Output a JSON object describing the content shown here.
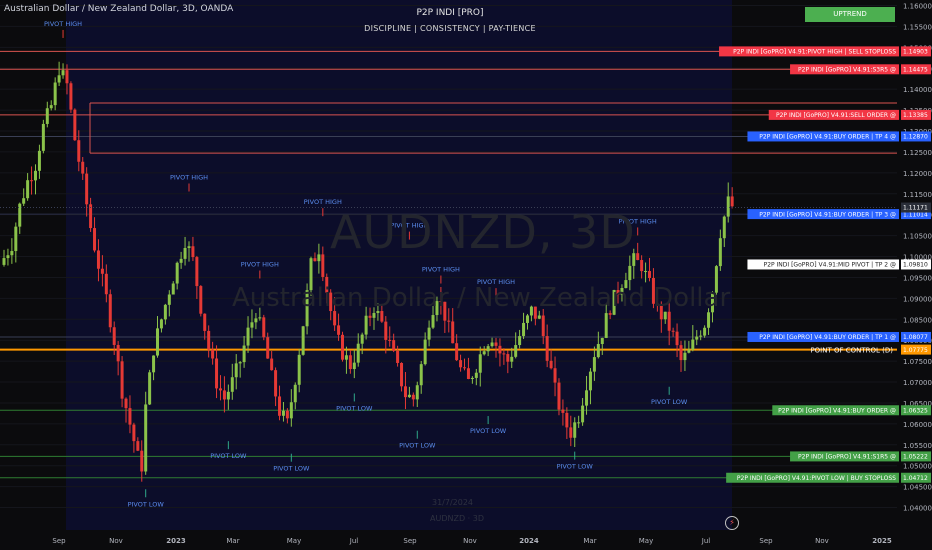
{
  "header": {
    "symbol_title": "Australian Dollar / New Zealand Dollar, 3D, OANDA",
    "indicator_title": "P2P INDI [PRO]",
    "tagline": "DISCIPLINE | CONSISTENCY | PAY-TIENCE",
    "trend_badge": "UPTREND"
  },
  "watermark": {
    "ticker": "AUDNZD, 3D",
    "name": "Australian Dollar / New Zealand Dollar",
    "date": "31/7/2024",
    "symbol": "AUDNZD · 3D"
  },
  "icons": {
    "alert": "lightning-icon"
  },
  "colors": {
    "bull": "#8bc34a",
    "bear": "#e53935",
    "sell_line": "#d9534f",
    "buy_line": "#2e7d32",
    "poc": "#ff9800",
    "range_bg": "#0c0d2a",
    "buy_tag": "#2962ff",
    "sell_tag": "#f23645",
    "green_tag": "#43a047"
  },
  "chart_data": {
    "type": "candlestick",
    "symbol": "AUDNZD",
    "timeframe": "3D",
    "ylim": [
      1.0375,
      1.16
    ],
    "x_ticks": [
      "Sep",
      "Nov",
      "2023",
      "Mar",
      "May",
      "Jul",
      "Sep",
      "Nov",
      "2024",
      "Mar",
      "May",
      "Jul",
      "Sep",
      "Nov",
      "2025"
    ],
    "y_ticks": [
      "1.16000",
      "1.15500",
      "1.15000",
      "1.14500",
      "1.14000",
      "1.13500",
      "1.13000",
      "1.12500",
      "1.12000",
      "1.11500",
      "1.11000",
      "1.10500",
      "1.10000",
      "1.09500",
      "1.09000",
      "1.08500",
      "1.08000",
      "1.07500",
      "1.07000",
      "1.06500",
      "1.06000",
      "1.05500",
      "1.05000",
      "1.04500",
      "1.04000"
    ],
    "current_price": "1.11171",
    "price_path": [
      [
        0,
        1.098
      ],
      [
        6,
        1.103
      ],
      [
        10,
        1.112
      ],
      [
        14,
        1.118
      ],
      [
        18,
        1.122
      ],
      [
        22,
        1.131
      ],
      [
        26,
        1.136
      ],
      [
        30,
        1.145
      ],
      [
        34,
        1.141
      ],
      [
        38,
        1.128
      ],
      [
        42,
        1.118
      ],
      [
        46,
        1.107
      ],
      [
        50,
        1.098
      ],
      [
        54,
        1.09
      ],
      [
        58,
        1.08
      ],
      [
        62,
        1.068
      ],
      [
        66,
        1.06
      ],
      [
        70,
        1.052
      ],
      [
        72,
        1.05
      ],
      [
        74,
        1.064
      ],
      [
        78,
        1.078
      ],
      [
        82,
        1.085
      ],
      [
        86,
        1.092
      ],
      [
        90,
        1.098
      ],
      [
        94,
        1.104
      ],
      [
        98,
        1.099
      ],
      [
        102,
        1.088
      ],
      [
        106,
        1.078
      ],
      [
        110,
        1.07
      ],
      [
        114,
        1.066
      ],
      [
        118,
        1.07
      ],
      [
        122,
        1.075
      ],
      [
        126,
        1.082
      ],
      [
        130,
        1.087
      ],
      [
        134,
        1.08
      ],
      [
        138,
        1.071
      ],
      [
        142,
        1.063
      ],
      [
        146,
        1.06
      ],
      [
        150,
        1.071
      ],
      [
        154,
        1.084
      ],
      [
        158,
        1.098
      ],
      [
        162,
        1.102
      ],
      [
        166,
        1.092
      ],
      [
        170,
        1.082
      ],
      [
        174,
        1.077
      ],
      [
        178,
        1.074
      ],
      [
        182,
        1.078
      ],
      [
        186,
        1.084
      ],
      [
        190,
        1.088
      ],
      [
        194,
        1.084
      ],
      [
        198,
        1.079
      ],
      [
        202,
        1.073
      ],
      [
        206,
        1.067
      ],
      [
        210,
        1.066
      ],
      [
        214,
        1.074
      ],
      [
        218,
        1.085
      ],
      [
        222,
        1.091
      ],
      [
        226,
        1.086
      ],
      [
        230,
        1.079
      ],
      [
        234,
        1.073
      ],
      [
        238,
        1.07
      ],
      [
        242,
        1.074
      ],
      [
        246,
        1.079
      ],
      [
        250,
        1.081
      ],
      [
        254,
        1.077
      ],
      [
        258,
        1.075
      ],
      [
        262,
        1.079
      ],
      [
        266,
        1.083
      ],
      [
        270,
        1.087
      ],
      [
        274,
        1.085
      ],
      [
        278,
        1.077
      ],
      [
        282,
        1.068
      ],
      [
        286,
        1.061
      ],
      [
        290,
        1.058
      ],
      [
        294,
        1.062
      ],
      [
        298,
        1.07
      ],
      [
        302,
        1.077
      ],
      [
        306,
        1.082
      ],
      [
        310,
        1.088
      ],
      [
        314,
        1.092
      ],
      [
        318,
        1.096
      ],
      [
        322,
        1.099
      ],
      [
        326,
        1.098
      ],
      [
        330,
        1.093
      ],
      [
        334,
        1.087
      ],
      [
        338,
        1.085
      ],
      [
        342,
        1.081
      ],
      [
        346,
        1.075
      ],
      [
        350,
        1.077
      ],
      [
        354,
        1.081
      ],
      [
        358,
        1.084
      ],
      [
        362,
        1.092
      ],
      [
        366,
        1.106
      ],
      [
        370,
        1.113
      ],
      [
        372,
        1.112
      ]
    ],
    "levels": [
      {
        "label": "P2P INDI [GoPRO] V4.91:PIVOT HIGH | SELL STOPLOSS",
        "price": 1.14903,
        "kind": "sell"
      },
      {
        "label": "P2P INDI [GoPRO] V4.91:S3R5 @",
        "price": 1.14475,
        "kind": "sell"
      },
      {
        "label": "",
        "price": 1.1367,
        "kind": "sell"
      },
      {
        "label": "P2P INDI [GoPRO] V4.91:SELL ORDER @",
        "price": 1.13385,
        "kind": "sell"
      },
      {
        "label": "P2P INDI [GoPRO] V4.91:BUY ORDER | TP 4 @",
        "price": 1.1287,
        "kind": "buy"
      },
      {
        "label": "",
        "price": 1.1247,
        "kind": "sell"
      },
      {
        "label": "P2P INDI [GoPRO] V4.91:BUY ORDER | TP 3 @",
        "price": 1.11014,
        "kind": "buy"
      },
      {
        "label": "P2P INDI [GoPRO] V4.91:MID PIVOT | TP 2 @",
        "price": 1.0981,
        "kind": "mid"
      },
      {
        "label": "P2P INDI [GoPRO] V4.91:BUY ORDER | TP 1 @",
        "price": 1.08077,
        "kind": "buy"
      },
      {
        "label": "POINT OF CONTROL (D)",
        "price": 1.07775,
        "kind": "poc"
      },
      {
        "label": "P2P INDI [GoPRO] V4.91:BUY ORDER @",
        "price": 1.06325,
        "kind": "green"
      },
      {
        "label": "P2P INDI [GoPRO] V4.91:S1R5 @",
        "price": 1.05222,
        "kind": "green"
      },
      {
        "label": "P2P INDI [GoPRO] V4.91:PIVOT LOW | BUY STOPLOSS",
        "price": 1.04712,
        "kind": "green"
      }
    ],
    "level_values": [
      "1.14903",
      "1.14475",
      "",
      "1.13385",
      "1.12870",
      "",
      "1.11014",
      "1.09810",
      "1.08077",
      "1.07775",
      "1.06325",
      "1.05222",
      "1.04712"
    ],
    "pivots": [
      {
        "text": "PIVOT HIGH",
        "t": 30,
        "price": 1.1532,
        "type": "high"
      },
      {
        "text": "PIVOT HIGH",
        "t": 94,
        "price": 1.1165,
        "type": "high"
      },
      {
        "text": "PIVOT HIGH",
        "t": 130,
        "price": 1.0957,
        "type": "high"
      },
      {
        "text": "PIVOT HIGH",
        "t": 162,
        "price": 1.1106,
        "type": "high"
      },
      {
        "text": "PIVOT HIGH",
        "t": 222,
        "price": 1.0945,
        "type": "high"
      },
      {
        "text": "PIVOT HIGH",
        "t": 206,
        "price": 1.105,
        "type": "high"
      },
      {
        "text": "PIVOT HIGH",
        "t": 250,
        "price": 1.0915,
        "type": "high"
      },
      {
        "text": "PIVOT HIGH",
        "t": 322,
        "price": 1.106,
        "type": "high"
      },
      {
        "text": "PIVOT LOW",
        "t": 72,
        "price": 1.0415,
        "type": "low"
      },
      {
        "text": "PIVOT LOW",
        "t": 114,
        "price": 1.053,
        "type": "low"
      },
      {
        "text": "PIVOT LOW",
        "t": 146,
        "price": 1.05,
        "type": "low"
      },
      {
        "text": "PIVOT LOW",
        "t": 178,
        "price": 1.0644,
        "type": "low"
      },
      {
        "text": "PIVOT LOW",
        "t": 210,
        "price": 1.0555,
        "type": "low"
      },
      {
        "text": "PIVOT LOW",
        "t": 246,
        "price": 1.059,
        "type": "low"
      },
      {
        "text": "PIVOT LOW",
        "t": 290,
        "price": 1.0505,
        "type": "low"
      },
      {
        "text": "PIVOT LOW",
        "t": 338,
        "price": 1.066,
        "type": "low"
      }
    ]
  }
}
